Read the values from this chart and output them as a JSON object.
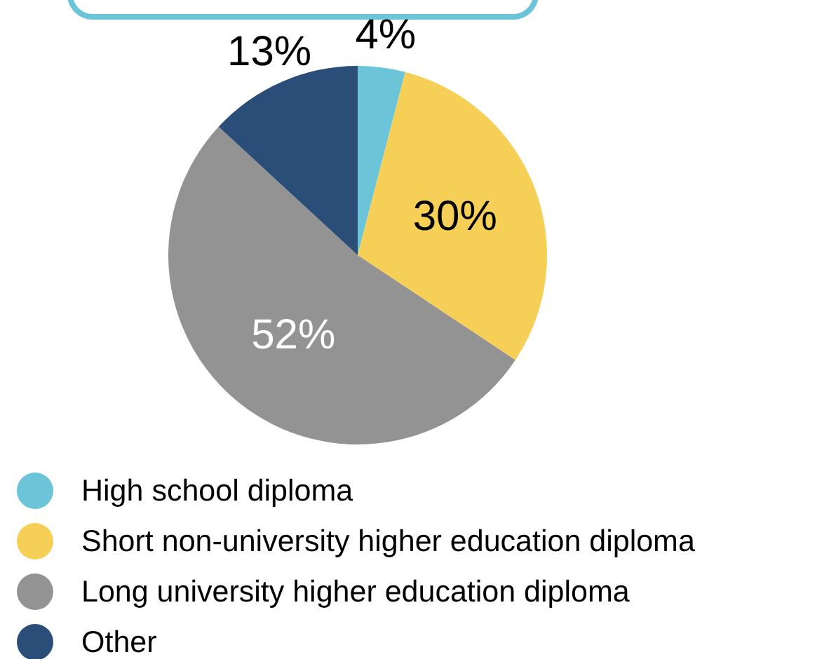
{
  "chart_data": {
    "type": "pie",
    "categories": [
      "High school diploma",
      "Short non-university higher education diploma",
      "Long university higher education diploma",
      "Other"
    ],
    "values": [
      4,
      30,
      52,
      13
    ],
    "colors": [
      "#6cc4d8",
      "#f6cf57",
      "#939393",
      "#2a4e78"
    ],
    "value_labels": [
      "4%",
      "30%",
      "52%",
      "13%"
    ],
    "legend": "bottom left"
  }
}
